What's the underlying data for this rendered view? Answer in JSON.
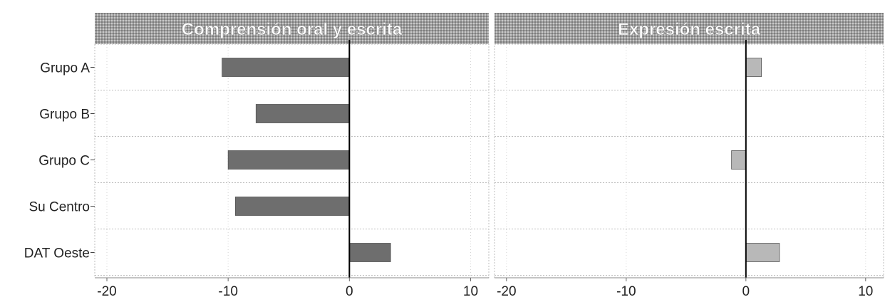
{
  "chart_data": [
    {
      "type": "bar",
      "orientation": "horizontal",
      "title": "Comprensión oral y escrita",
      "categories": [
        "Grupo A",
        "Grupo B",
        "Grupo C",
        "Su Centro",
        "DAT Oeste"
      ],
      "values": [
        -10.5,
        -7.7,
        -10.0,
        -9.4,
        3.4
      ],
      "xlim": [
        -21,
        11.5
      ],
      "xticks": [
        -20,
        -10,
        0,
        10
      ],
      "bar_color": "#6e6e6e",
      "grid": true
    },
    {
      "type": "bar",
      "orientation": "horizontal",
      "title": "Expresión escrita",
      "categories": [
        "Grupo A",
        "Grupo B",
        "Grupo C",
        "Su Centro",
        "DAT Oeste"
      ],
      "values": [
        1.3,
        0,
        -1.2,
        0,
        2.8
      ],
      "xlim": [
        -21,
        11.5
      ],
      "xticks": [
        -20,
        -10,
        0,
        10
      ],
      "bar_color": "#b8b8b8",
      "grid": true
    }
  ],
  "colors": {
    "header_band": "#9e9e9e",
    "grid": "#bdbdbd",
    "zero_line": "#000000"
  }
}
